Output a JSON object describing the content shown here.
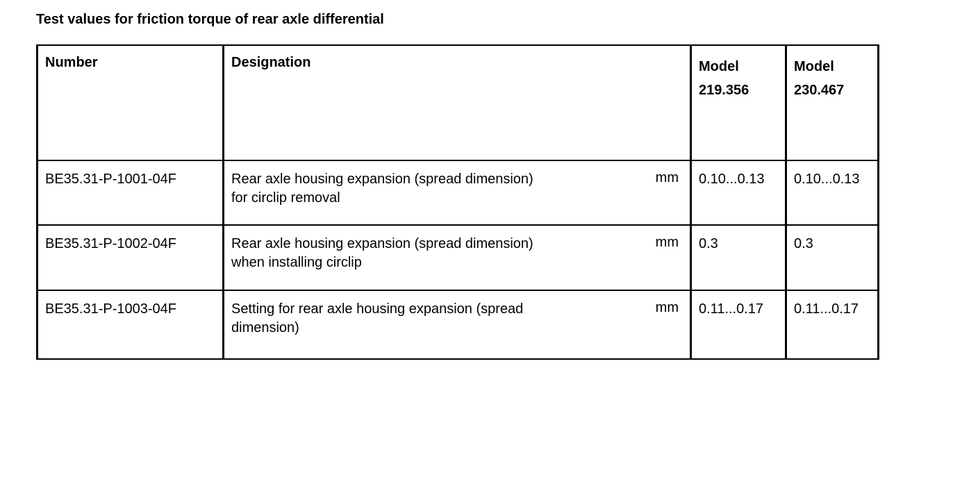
{
  "page": {
    "title": "Test values for friction torque of rear axle differential"
  },
  "table": {
    "headers": {
      "number": "Number",
      "designation": "Designation",
      "model1": "Model\n219.356",
      "model2": "Model\n230.467"
    },
    "rows": [
      {
        "number": "BE35.31-P-1001-04F",
        "designation": "Rear axle housing expansion (spread dimension)\nfor circlip removal",
        "unit": "mm",
        "model1": "0.10...0.13",
        "model2": "0.10...0.13"
      },
      {
        "number": "BE35.31-P-1002-04F",
        "designation": "Rear axle housing expansion (spread dimension)\nwhen installing circlip",
        "unit": "mm",
        "model1": "0.3",
        "model2": "0.3"
      },
      {
        "number": "BE35.31-P-1003-04F",
        "designation": "Setting for rear axle housing expansion (spread\ndimension)",
        "unit": "mm",
        "model1": "0.11...0.17",
        "model2": "0.11...0.17"
      }
    ]
  }
}
